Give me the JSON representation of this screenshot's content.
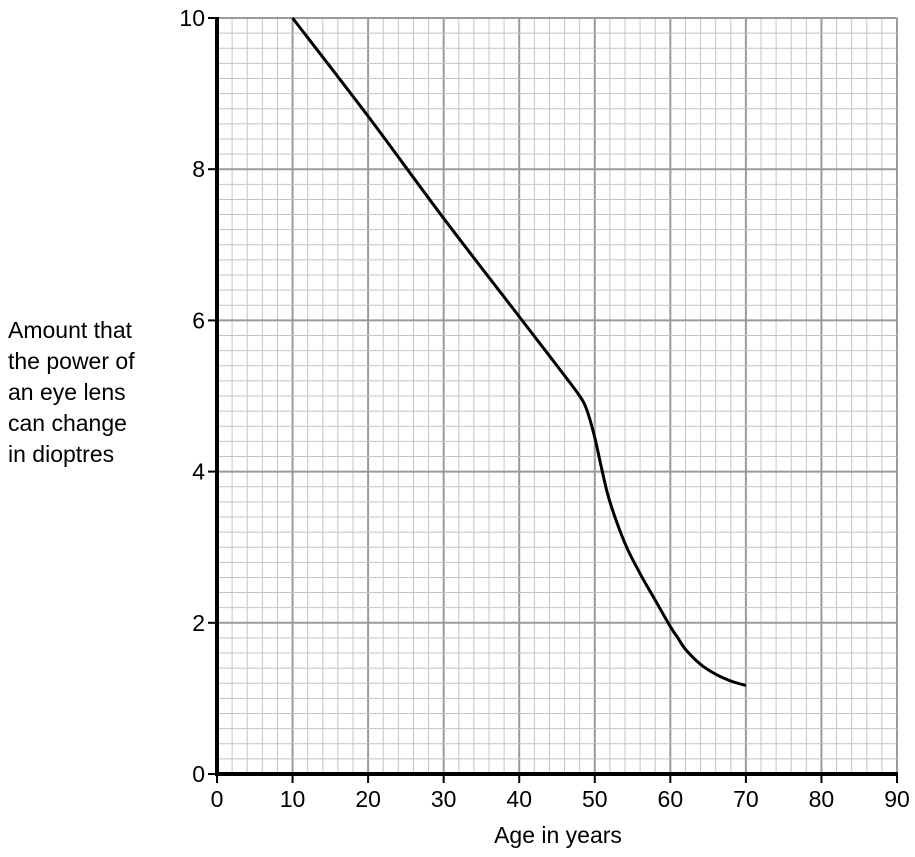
{
  "chart_data": {
    "type": "line",
    "title": "",
    "xlabel": "Age in years",
    "ylabel_lines": [
      "Amount that",
      "the power of",
      "an eye lens",
      "can change",
      "in dioptres"
    ],
    "xlim": [
      0,
      90
    ],
    "ylim": [
      0,
      10
    ],
    "x_ticks": [
      0,
      10,
      20,
      30,
      40,
      50,
      60,
      70,
      80,
      90
    ],
    "y_ticks": [
      0,
      2,
      4,
      6,
      8,
      10
    ],
    "grid": true,
    "legend": "none",
    "series": [
      {
        "color": "#000000",
        "x": [
          10,
          20,
          30,
          40,
          45,
          48,
          49,
          50,
          51,
          52,
          54,
          56,
          58,
          60,
          61,
          62,
          64,
          66,
          68,
          70
        ],
        "y": [
          10,
          8.7,
          7.35,
          6.05,
          5.4,
          5.0,
          4.8,
          4.45,
          4.0,
          3.6,
          3.05,
          2.65,
          2.3,
          1.95,
          1.8,
          1.65,
          1.45,
          1.32,
          1.23,
          1.17
        ]
      }
    ]
  },
  "colors": {
    "major_grid": "#9a9a9a",
    "minor_grid": "#c4c4c4",
    "axis": "#000000",
    "line": "#000000"
  }
}
